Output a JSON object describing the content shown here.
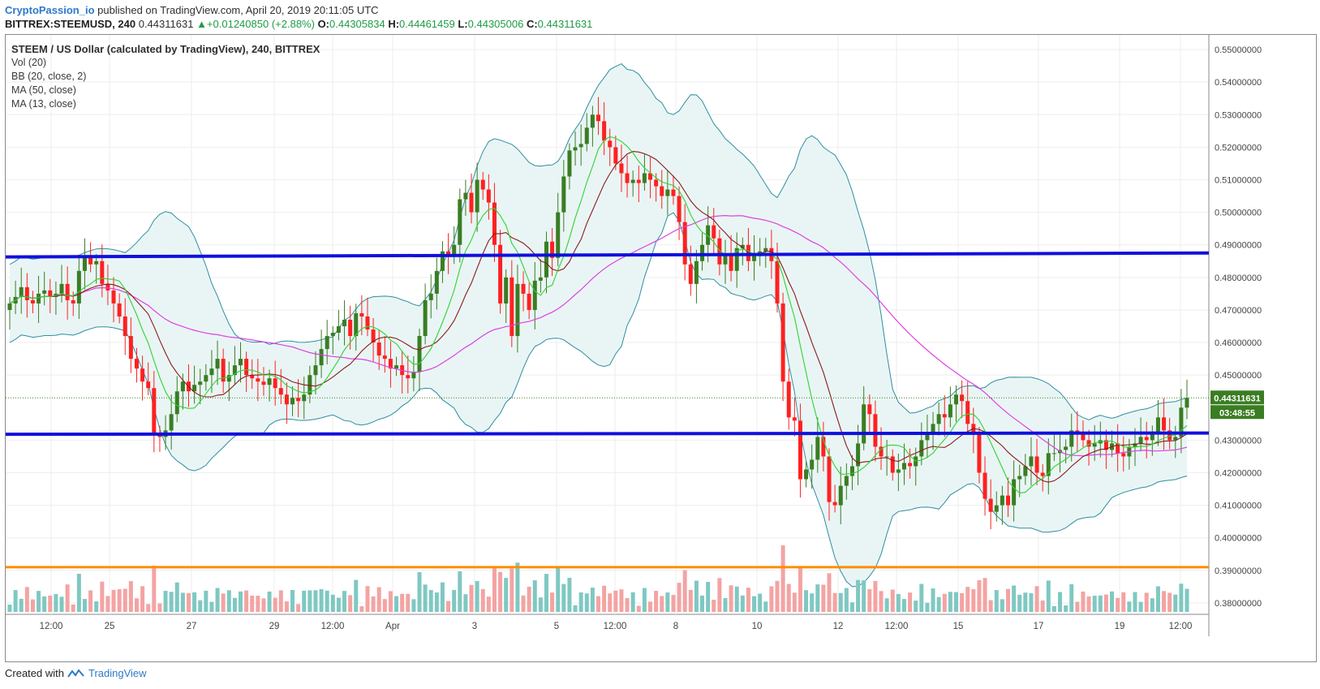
{
  "header": {
    "publisher": "CryptoPassion_io",
    "published_text": "published on TradingView.com, April 20, 2019 20:11:05 UTC",
    "symbol": "BITTREX:STEEMUSD, 240",
    "last": "0.44311631",
    "change": "+0.01240850 (+2.88%)",
    "o_label": "O:",
    "o_value": "0.44305834",
    "h_label": "H:",
    "h_value": "0.44461459",
    "l_label": "L:",
    "l_value": "0.44305006",
    "c_label": "C:",
    "c_value": "0.44311631"
  },
  "legend": {
    "main": "STEEM / US Dollar (calculated by TradingView), 240, BITTREX",
    "vol": "Vol (20)",
    "bb": "BB (20, close, 2)",
    "ma50": "MA (50, close)",
    "ma13": "MA (13, close)"
  },
  "footer": {
    "created_with": "Created with",
    "brand": "TradingView"
  },
  "colors": {
    "up": "#3a7d22",
    "down": "#ff2020",
    "vol_up": "#7fc8c2",
    "vol_down": "#f4a3a3",
    "bb_band": "#2f8ea0",
    "bb_fill": "#e9f5f5",
    "ma50": "#e040e0",
    "ma13": "#2fd42f",
    "ma_mid": "#8b1a1a",
    "resistance": "#1010dd",
    "support": "#1010dd",
    "orange_line": "#ff8c00"
  },
  "chart_data": {
    "type": "candlestick",
    "y_axis": {
      "ticks": [
        "0.55000000",
        "0.54000000",
        "0.53000000",
        "0.52000000",
        "0.51000000",
        "0.50000000",
        "0.49000000",
        "0.48000000",
        "0.47000000",
        "0.46000000",
        "0.45000000",
        "0.43000000",
        "0.42000000",
        "0.41000000",
        "0.40000000",
        "0.39000000",
        "0.38000000"
      ],
      "range": [
        0.3765,
        0.5545
      ]
    },
    "x_axis": {
      "ticks": [
        "12:00",
        "25",
        "27",
        "29",
        "12:00",
        "Apr",
        "3",
        "5",
        "12:00",
        "8",
        "10",
        "12",
        "12:00",
        "15",
        "17",
        "19",
        "12:00"
      ]
    },
    "price_label": "0.44311631",
    "countdown_label": "03:48:55",
    "horizontal_lines": [
      {
        "name": "resistance",
        "y_start": 0.4863,
        "y_end": 0.4875
      },
      {
        "name": "support",
        "y_start": 0.4318,
        "y_end": 0.4322
      },
      {
        "name": "volume-baseline",
        "y_start": 0.391,
        "y_end": 0.391
      }
    ],
    "closes": [
      0.472,
      0.474,
      0.477,
      0.473,
      0.472,
      0.475,
      0.476,
      0.474,
      0.475,
      0.478,
      0.473,
      0.472,
      0.482,
      0.486,
      0.484,
      0.485,
      0.478,
      0.476,
      0.472,
      0.468,
      0.462,
      0.455,
      0.452,
      0.448,
      0.446,
      0.432,
      0.431,
      0.433,
      0.438,
      0.445,
      0.448,
      0.445,
      0.447,
      0.448,
      0.45,
      0.452,
      0.455,
      0.448,
      0.45,
      0.453,
      0.455,
      0.45,
      0.449,
      0.448,
      0.447,
      0.449,
      0.446,
      0.444,
      0.441,
      0.443,
      0.442,
      0.444,
      0.45,
      0.453,
      0.458,
      0.462,
      0.463,
      0.465,
      0.467,
      0.462,
      0.469,
      0.468,
      0.464,
      0.46,
      0.456,
      0.455,
      0.452,
      0.453,
      0.45,
      0.449,
      0.451,
      0.462,
      0.473,
      0.475,
      0.482,
      0.488,
      0.487,
      0.49,
      0.504,
      0.506,
      0.5,
      0.51,
      0.507,
      0.503,
      0.49,
      0.472,
      0.48,
      0.462,
      0.478,
      0.475,
      0.47,
      0.479,
      0.48,
      0.491,
      0.486,
      0.5,
      0.511,
      0.519,
      0.52,
      0.521,
      0.526,
      0.53,
      0.528,
      0.522,
      0.52,
      0.515,
      0.512,
      0.509,
      0.51,
      0.509,
      0.512,
      0.51,
      0.508,
      0.505,
      0.507,
      0.505,
      0.497,
      0.484,
      0.478,
      0.485,
      0.49,
      0.496,
      0.492,
      0.484,
      0.487,
      0.482,
      0.489,
      0.49,
      0.485,
      0.487,
      0.488,
      0.489,
      0.485,
      0.472,
      0.448,
      0.437,
      0.436,
      0.418,
      0.421,
      0.424,
      0.431,
      0.425,
      0.411,
      0.41,
      0.416,
      0.419,
      0.422,
      0.429,
      0.441,
      0.438,
      0.428,
      0.425,
      0.425,
      0.42,
      0.421,
      0.423,
      0.422,
      0.425,
      0.43,
      0.432,
      0.435,
      0.438,
      0.437,
      0.441,
      0.444,
      0.442,
      0.435,
      0.432,
      0.42,
      0.412,
      0.408,
      0.41,
      0.413,
      0.41,
      0.418,
      0.419,
      0.422,
      0.425,
      0.42,
      0.419,
      0.426,
      0.426,
      0.427,
      0.428,
      0.433,
      0.432,
      0.43,
      0.428,
      0.429,
      0.43,
      0.427,
      0.429,
      0.426,
      0.425,
      0.428,
      0.429,
      0.431,
      0.43,
      0.432,
      0.437,
      0.433,
      0.43,
      0.431,
      0.44,
      0.443
    ]
  }
}
